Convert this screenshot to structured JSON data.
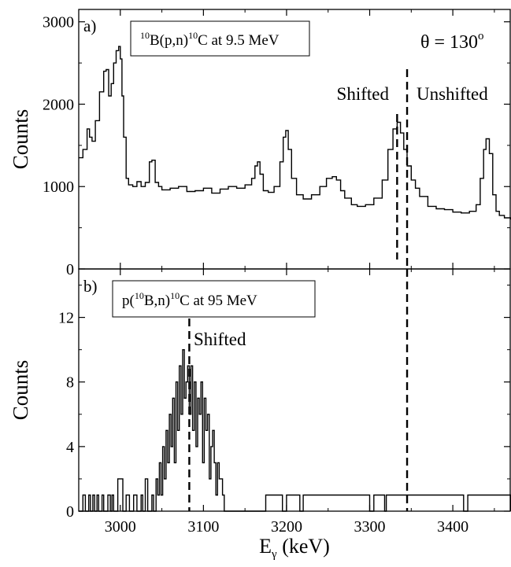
{
  "chart_data": [
    {
      "type": "line",
      "panel_label": "a)",
      "inset_label": {
        "pre": "",
        "sup1": "10",
        "mid": "B(p,n)",
        "sup2": "10",
        "post": "C at 9.5 MeV"
      },
      "angle_label": {
        "text": "θ = 130",
        "sup": "o"
      },
      "ylabel": "Counts",
      "xlim": [
        2950,
        3470
      ],
      "ylim": [
        0,
        3150
      ],
      "y_ticks": [
        0,
        1000,
        2000,
        3000
      ],
      "x_ticks": [
        3000,
        3100,
        3200,
        3300,
        3400
      ],
      "annotations": [
        {
          "text": "Shifted"
        },
        {
          "text": "Unshifted"
        }
      ],
      "vlines": [
        3333,
        3345
      ],
      "series": [
        {
          "x": [
            2950,
            2955,
            2960,
            2963,
            2966,
            2970,
            2975,
            2980,
            2983,
            2986,
            2989,
            2992,
            2995,
            2998,
            3000,
            3002,
            3004,
            3007,
            3010,
            3015,
            3020,
            3025,
            3030,
            3035,
            3038,
            3042,
            3046,
            3050,
            3060,
            3070,
            3080,
            3090,
            3100,
            3110,
            3120,
            3130,
            3140,
            3150,
            3158,
            3162,
            3165,
            3168,
            3172,
            3178,
            3185,
            3192,
            3196,
            3199,
            3202,
            3206,
            3212,
            3220,
            3230,
            3240,
            3248,
            3255,
            3260,
            3265,
            3270,
            3278,
            3285,
            3295,
            3305,
            3315,
            3322,
            3328,
            3333,
            3337,
            3341,
            3345,
            3350,
            3355,
            3360,
            3370,
            3380,
            3390,
            3400,
            3410,
            3420,
            3428,
            3433,
            3437,
            3440,
            3444,
            3448,
            3452,
            3456,
            3462,
            3470
          ],
          "y": [
            1350,
            1450,
            1700,
            1600,
            1550,
            1800,
            2150,
            2400,
            2420,
            2100,
            2250,
            2500,
            2650,
            2700,
            2550,
            2100,
            1600,
            1100,
            1020,
            1000,
            1060,
            1000,
            1050,
            1300,
            1320,
            1050,
            1000,
            960,
            980,
            1000,
            940,
            950,
            980,
            920,
            970,
            1000,
            980,
            1020,
            1100,
            1250,
            1300,
            1150,
            950,
            930,
            1000,
            1300,
            1600,
            1680,
            1450,
            1100,
            900,
            850,
            900,
            1000,
            1100,
            1120,
            1080,
            950,
            860,
            780,
            760,
            780,
            860,
            1080,
            1450,
            1700,
            1780,
            1650,
            1450,
            1250,
            1080,
            980,
            880,
            760,
            730,
            720,
            690,
            680,
            700,
            780,
            1100,
            1450,
            1580,
            1400,
            900,
            700,
            650,
            620,
            600
          ]
        }
      ]
    },
    {
      "type": "line",
      "panel_label": "b)",
      "inset_label": {
        "pre": "p(",
        "sup1": "10",
        "mid": "B,n)",
        "sup2": "10",
        "post": "C at 95 MeV"
      },
      "ylabel": "Counts",
      "xlabel": "E",
      "xlabel_sub": "γ",
      "xlabel_unit": " (keV)",
      "xlim": [
        2950,
        3470
      ],
      "ylim": [
        0,
        15
      ],
      "y_ticks": [
        0,
        4,
        8,
        12
      ],
      "x_ticks": [
        3000,
        3100,
        3200,
        3300,
        3400
      ],
      "annotations": [
        {
          "text": "Shifted"
        }
      ],
      "vlines": [
        3083,
        3345
      ],
      "series": [
        {
          "x": [
            2950,
            2955,
            2958,
            2962,
            2964,
            2967,
            2969,
            2972,
            2974,
            2978,
            2980,
            2985,
            2988,
            2990,
            2992,
            2997,
            3003,
            3007,
            3011,
            3016,
            3020,
            3025,
            3027,
            3030,
            3033,
            3038,
            3040,
            3043,
            3045,
            3047,
            3049,
            3051,
            3053,
            3055,
            3057,
            3059,
            3061,
            3063,
            3065,
            3067,
            3069,
            3071,
            3073,
            3075,
            3077,
            3079,
            3081,
            3083,
            3085,
            3087,
            3089,
            3091,
            3093,
            3095,
            3097,
            3099,
            3101,
            3103,
            3105,
            3107,
            3109,
            3111,
            3113,
            3115,
            3117,
            3119,
            3121,
            3123,
            3125,
            3128,
            3135,
            3170,
            3175,
            3195,
            3200,
            3216,
            3220,
            3300,
            3305,
            3318,
            3320,
            3413,
            3418,
            3470
          ],
          "y": [
            0,
            1,
            0,
            1,
            0,
            1,
            0,
            1,
            0,
            1,
            0,
            1,
            0,
            1,
            0,
            2,
            0,
            1,
            0,
            1,
            0,
            1,
            0,
            2,
            0,
            1,
            0,
            2,
            1,
            3,
            1,
            4,
            2,
            5,
            3,
            6,
            4,
            7,
            3,
            8,
            5,
            9,
            6,
            10,
            7,
            8,
            9,
            6,
            9,
            5,
            8,
            4,
            7,
            6,
            8,
            3,
            7,
            5,
            6,
            2,
            4,
            5,
            3,
            1,
            3,
            2,
            2,
            1,
            0,
            0,
            0,
            0,
            1,
            0,
            1,
            0,
            1,
            0,
            1,
            0,
            1,
            0,
            1,
            0
          ]
        }
      ]
    }
  ]
}
